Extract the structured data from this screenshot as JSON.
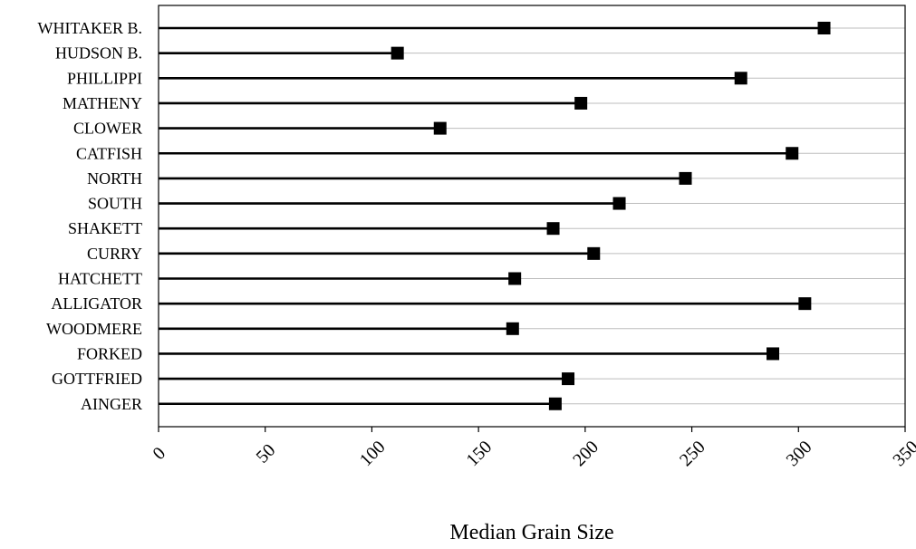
{
  "chart_data": {
    "type": "dot",
    "title": "",
    "xlabel": "Median Grain Size",
    "ylabel": "",
    "xlim": [
      0,
      350
    ],
    "xticks": [
      0,
      50,
      100,
      150,
      200,
      250,
      300,
      350
    ],
    "grid": "horizontal",
    "categories": [
      "WHITAKER B.",
      "HUDSON B.",
      "PHILLIPPI",
      "MATHENY",
      "CLOWER",
      "CATFISH",
      "NORTH",
      "SOUTH",
      "SHAKETT",
      "CURRY",
      "HATCHETT",
      "ALLIGATOR",
      "WOODMERE",
      "FORKED",
      "GOTTFRIED",
      "AINGER"
    ],
    "values": [
      312,
      112,
      273,
      198,
      132,
      297,
      247,
      216,
      185,
      204,
      167,
      303,
      166,
      288,
      192,
      186
    ]
  }
}
